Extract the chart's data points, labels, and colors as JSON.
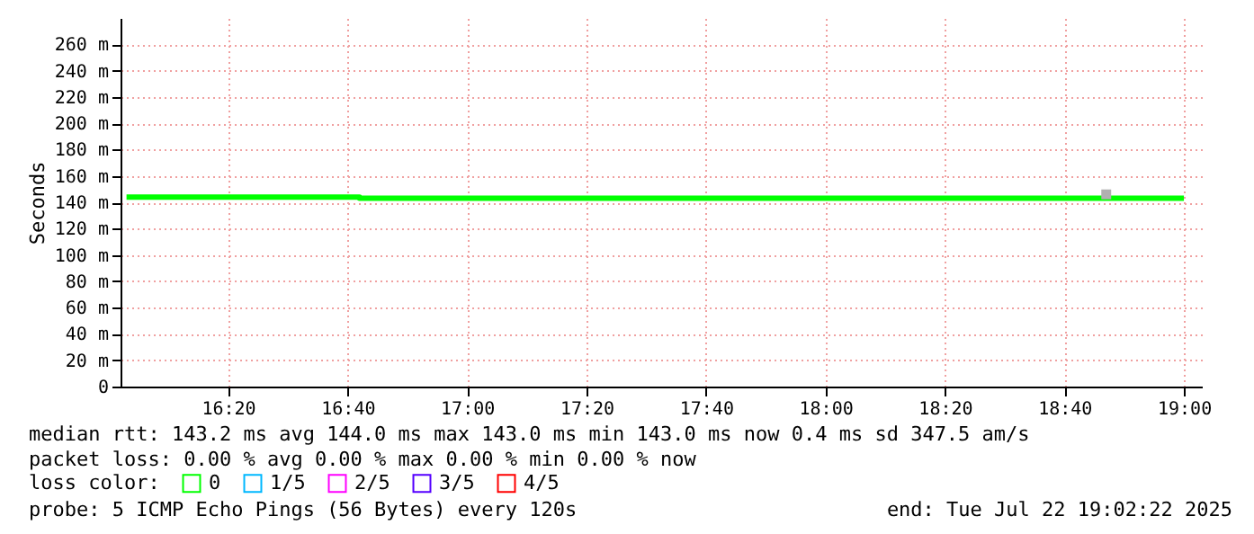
{
  "chart_data": {
    "type": "step",
    "ylabel": "Seconds",
    "x": [
      "2025-07-22T16:03",
      "2025-07-22T16:42",
      "2025-07-22T19:00"
    ],
    "series": [
      {
        "name": "0",
        "color": "#00ff00",
        "values": [
          144,
          143,
          143
        ]
      },
      {
        "name": "1/5",
        "color": "#00b8ff",
        "values": [
          null,
          null,
          null
        ]
      },
      {
        "name": "2/5",
        "color": "#ff00ff",
        "values": [
          null,
          null,
          null
        ]
      },
      {
        "name": "3/5",
        "color": "#5500ff",
        "values": [
          null,
          null,
          null
        ]
      },
      {
        "name": "4/5",
        "color": "#ff0000",
        "values": [
          null,
          null,
          null
        ]
      },
      {
        "type": "scatter",
        "marker": "square",
        "color": "#b0b0b0",
        "x": [
          "2025-07-22T18:47"
        ],
        "values": [
          146
        ]
      }
    ],
    "legend_title": "loss color:",
    "legend": "bottom",
    "xlim": [
      "2025-07-22T16:02",
      "2025-07-22T19:03"
    ],
    "xticks": [
      {
        "value": "2025-07-22T16:20",
        "label": "16:20"
      },
      {
        "value": "2025-07-22T16:40",
        "label": "16:40"
      },
      {
        "value": "2025-07-22T17:00",
        "label": "17:00"
      },
      {
        "value": "2025-07-22T17:20",
        "label": "17:20"
      },
      {
        "value": "2025-07-22T17:40",
        "label": "17:40"
      },
      {
        "value": "2025-07-22T18:00",
        "label": "18:00"
      },
      {
        "value": "2025-07-22T18:20",
        "label": "18:20"
      },
      {
        "value": "2025-07-22T18:40",
        "label": "18:40"
      },
      {
        "value": "2025-07-22T19:00",
        "label": "19:00"
      }
    ],
    "ylim": [
      0,
      280
    ],
    "yticks": [
      0,
      {
        "value": 20,
        "label": "20 m"
      },
      {
        "value": 40,
        "label": "40 m"
      },
      {
        "value": 60,
        "label": "60 m"
      },
      {
        "value": 80,
        "label": "80 m"
      },
      {
        "value": 100,
        "label": "100 m"
      },
      {
        "value": 120,
        "label": "120 m"
      },
      {
        "value": 140,
        "label": "140 m"
      },
      {
        "value": 160,
        "label": "160 m"
      },
      {
        "value": 180,
        "label": "180 m"
      },
      {
        "value": 200,
        "label": "200 m"
      },
      {
        "value": 220,
        "label": "220 m"
      },
      {
        "value": 240,
        "label": "240 m"
      },
      {
        "value": 260,
        "label": "260 m"
      }
    ],
    "grid": true,
    "marker": "none",
    "annotations": [
      "median rtt:  143.2 ms avg  144.0 ms max  143.0 ms min  143.0 ms now  0.4 ms sd  347.5   am/s",
      "packet loss: 0.00 % avg  0.00 % max  0.00 % min  0.00 % now",
      "probe:       5 ICMP Echo Pings (56 Bytes) every 120s",
      "end: Tue Jul 22 19:02:22 2025"
    ]
  }
}
